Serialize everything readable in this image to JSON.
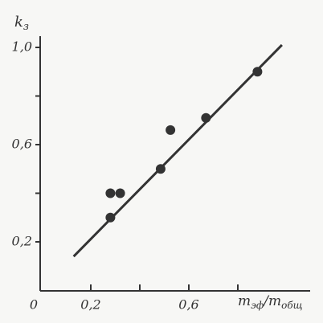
{
  "chart_data": {
    "type": "scatter",
    "y_label": [
      "k",
      "з"
    ],
    "x_label": [
      "m",
      "эф",
      "/m",
      "общ"
    ],
    "x": [
      0.28,
      0.32,
      0.28,
      0.485,
      0.525,
      0.67,
      0.88
    ],
    "values": [
      0.4,
      0.4,
      0.3,
      0.5,
      0.66,
      0.71,
      0.9
    ],
    "color": "#333333",
    "fit_line": {
      "x": [
        0.13,
        0.98
      ],
      "values": [
        0.14,
        1.01
      ]
    },
    "xlim": [
      0,
      1.1
    ],
    "ylim": [
      0,
      1.05
    ],
    "xticks": [
      {
        "value": 0,
        "label": "0"
      },
      {
        "value": 0.2,
        "label": "0,2"
      },
      {
        "value": 0.6,
        "label": "0,6"
      }
    ],
    "xticks_minor": [
      0.4,
      0.8
    ],
    "yticks": [
      {
        "value": 0.2,
        "label": "0,2"
      },
      {
        "value": 0.6,
        "label": "0,6"
      },
      {
        "value": 1.0,
        "label": "1,0"
      }
    ],
    "yticks_minor": [
      0.4,
      0.8
    ],
    "grid": false
  }
}
